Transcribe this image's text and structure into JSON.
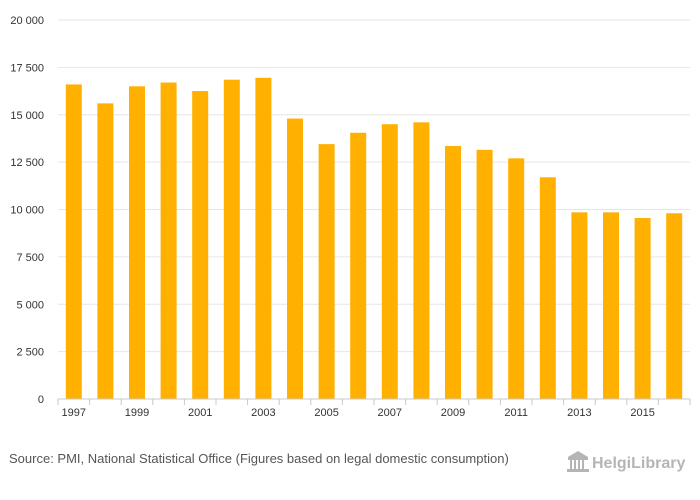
{
  "chart_data": {
    "type": "bar",
    "categories": [
      "1997",
      "1998",
      "1999",
      "2000",
      "2001",
      "2002",
      "2003",
      "2004",
      "2005",
      "2006",
      "2007",
      "2008",
      "2009",
      "2010",
      "2011",
      "2012",
      "2013",
      "2014",
      "2015",
      "2016"
    ],
    "values": [
      16600,
      15600,
      16500,
      16700,
      16250,
      16850,
      16950,
      14800,
      13450,
      14050,
      14500,
      14600,
      13350,
      13150,
      12700,
      11700,
      9850,
      9850,
      9550,
      9800
    ],
    "x_tick_labels": [
      "1997",
      "1999",
      "2001",
      "2003",
      "2005",
      "2007",
      "2009",
      "2011",
      "2013",
      "2015"
    ],
    "y_tick_labels": [
      "0",
      "2 500",
      "5 000",
      "7 500",
      "10 000",
      "12 500",
      "15 000",
      "17 500",
      "20 000"
    ],
    "y_ticks": [
      0,
      2500,
      5000,
      7500,
      10000,
      12500,
      15000,
      17500,
      20000
    ],
    "ylim": [
      0,
      20000
    ],
    "title": "",
    "xlabel": "",
    "ylabel": "",
    "grid": true,
    "legend": "none",
    "bar_color": "#FFB000",
    "grid_color": "#e6e6e6",
    "axis_color": "#c8c8c8"
  },
  "footer": {
    "source": "Source: PMI, National Statistical Office (Figures based on legal domestic consumption)"
  },
  "brand": {
    "name": "HelgiLibrary",
    "logo_icon": "building-icon"
  }
}
